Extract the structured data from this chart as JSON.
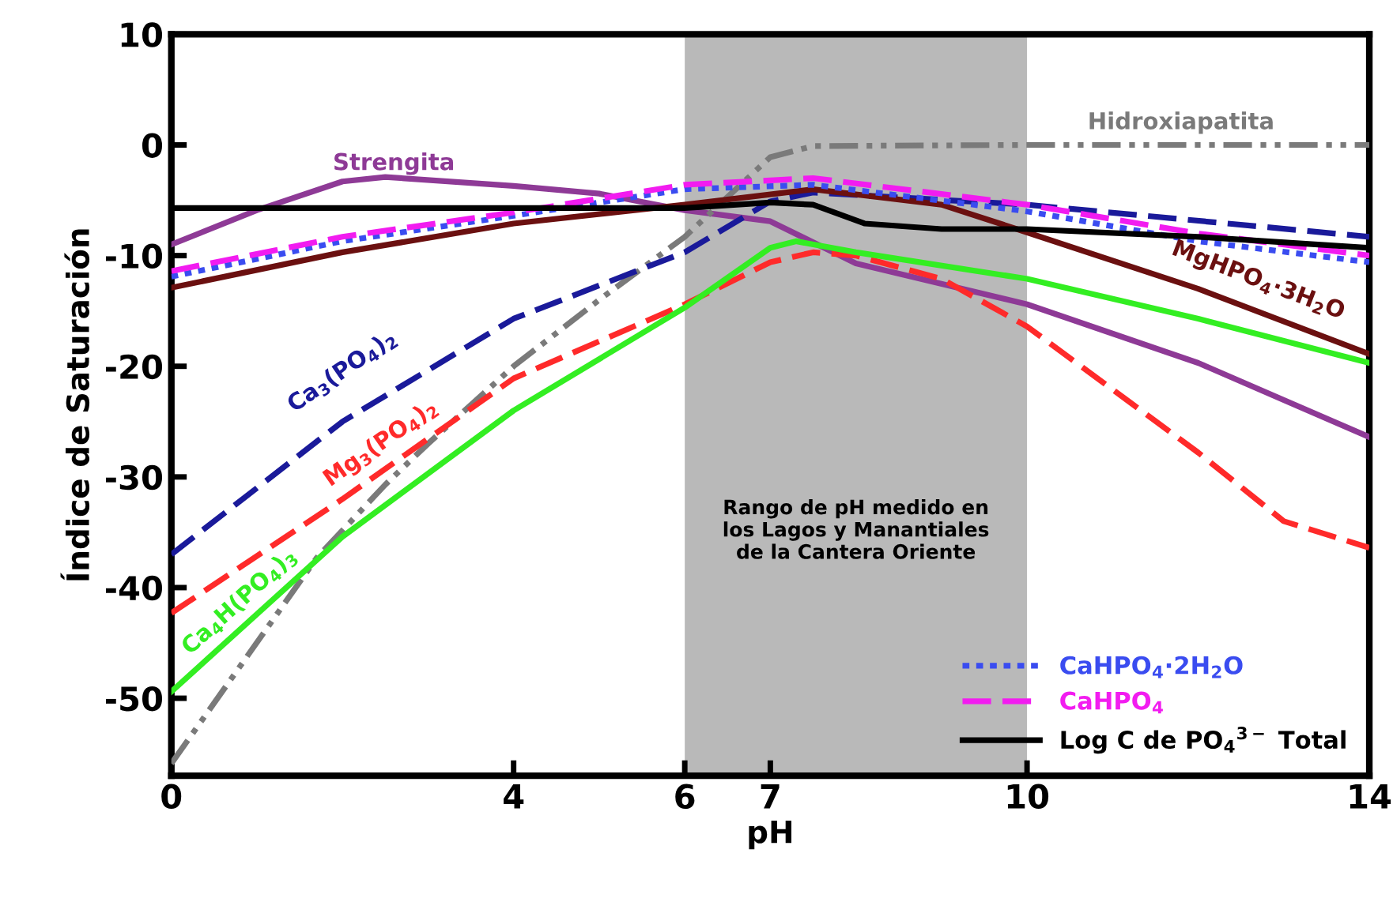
{
  "chart_data": {
    "type": "line",
    "xlabel": "pH",
    "ylabel": "Índice de Saturación",
    "xlim": [
      0,
      14
    ],
    "ylim": [
      -57,
      10
    ],
    "xticks": [
      0,
      4,
      6,
      7,
      10,
      14
    ],
    "yticks": [
      10,
      0,
      -10,
      -20,
      -30,
      -40,
      -50
    ],
    "grid": false,
    "legend": "bottom right",
    "bands": [
      {
        "axis": "x",
        "from": 6,
        "to": 10,
        "label": "Rango de pH medido en\nlos Lagos y Manantiales\nde la Cantera Oriente",
        "color": "#a8a8a8"
      }
    ],
    "series": [
      {
        "name": "Strengita",
        "color": "#8e3a96",
        "line_style": "solid",
        "x": [
          0,
          1,
          2,
          2.5,
          4,
          5,
          6,
          7,
          8,
          10,
          12,
          14
        ],
        "values": [
          -9,
          -5.9,
          -3.3,
          -2.9,
          -3.7,
          -4.4,
          -5.9,
          -6.9,
          -10.7,
          -14.4,
          -19.7,
          -26.4
        ]
      },
      {
        "name": "Hidroxiapatita",
        "color": "#7a7a7a",
        "line_style": "dashdot",
        "x": [
          0,
          1.7,
          2.5,
          3,
          4,
          5,
          6,
          7,
          7.5,
          10,
          14
        ],
        "values": [
          -55.9,
          -37.3,
          -30.7,
          -27,
          -20,
          -14,
          -8.3,
          -1.1,
          -0.1,
          0,
          0
        ]
      },
      {
        "name": "Ca$_{3}$(PO$_{4}$)$_{2}$",
        "color": "#1a1a9a",
        "line_style": "dashed",
        "x": [
          0,
          2,
          4,
          6,
          7,
          7.5,
          10,
          14
        ],
        "values": [
          -37,
          -25,
          -15.7,
          -9.7,
          -5.1,
          -4.3,
          -5.4,
          -8.3
        ]
      },
      {
        "name": "Mg$_{3}$(PO$_{4}$)$_{2}$",
        "color": "#ff2a2a",
        "line_style": "dashed",
        "x": [
          0,
          2,
          4,
          6,
          7,
          7.5,
          8,
          9,
          10,
          11,
          12,
          13,
          14
        ],
        "values": [
          -42.3,
          -32,
          -21.1,
          -14.4,
          -10.6,
          -9.7,
          -10,
          -12.1,
          -16.4,
          -22.1,
          -27.8,
          -34,
          -36.4
        ]
      },
      {
        "name": "Ca$_{4}$H(PO$_{4}$)$_{3}$",
        "color": "#33ee22",
        "line_style": "solid",
        "x": [
          0,
          2,
          4,
          6,
          7,
          7.3,
          8,
          10,
          12,
          14
        ],
        "values": [
          -49.4,
          -35.4,
          -24,
          -14.7,
          -9.3,
          -8.7,
          -9.7,
          -12.1,
          -15.7,
          -19.7
        ]
      },
      {
        "name": "MgHPO$_{4}$·3H$_{2}$O",
        "color": "#6b1010",
        "line_style": "solid",
        "x": [
          0,
          2,
          4,
          6,
          7.5,
          9,
          10,
          12,
          14
        ],
        "values": [
          -12.9,
          -9.7,
          -7.1,
          -5.4,
          -4,
          -5.4,
          -7.9,
          -13,
          -18.9
        ]
      },
      {
        "name": "CaHPO$_{4}$·2H$_{2}$O",
        "color": "#3a4cf0",
        "line_style": "dotted",
        "x": [
          0,
          2,
          4,
          6,
          7.5,
          10,
          12,
          14
        ],
        "values": [
          -11.9,
          -8.7,
          -6.4,
          -4,
          -3.6,
          -6,
          -8.7,
          -10.6
        ]
      },
      {
        "name": "CaHPO$_{4}$",
        "color": "#f21cf0",
        "line_style": "dashed",
        "x": [
          0,
          2,
          4,
          6,
          7.5,
          10,
          12,
          14
        ],
        "values": [
          -11.4,
          -8.3,
          -6.1,
          -3.6,
          -3,
          -5.4,
          -8,
          -10
        ]
      },
      {
        "name": "Log C de PO$_{4}$$^{3−}$ Total",
        "color": "#000000",
        "line_style": "solid",
        "x": [
          0,
          6,
          7,
          7.5,
          8.1,
          9,
          10,
          12,
          14
        ],
        "values": [
          -5.7,
          -5.7,
          -5.2,
          -5.4,
          -7.1,
          -7.6,
          -7.6,
          -8.3,
          -9.3
        ]
      }
    ]
  }
}
